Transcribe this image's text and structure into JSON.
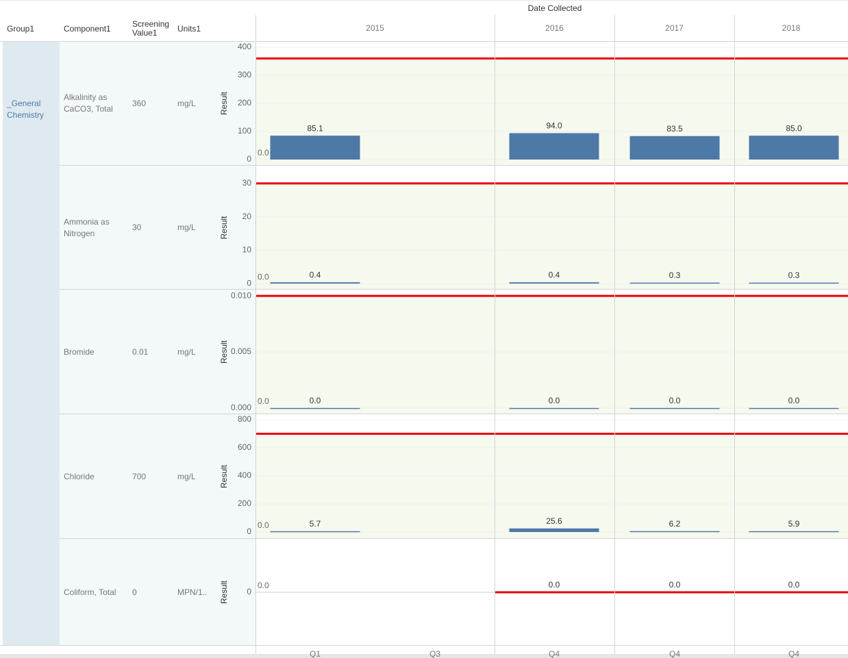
{
  "header": {
    "columns": [
      "Group1",
      "Component1",
      "Screening Value1",
      "Units1"
    ],
    "date_label": "Date Collected",
    "years": [
      "2015",
      "2016",
      "2017",
      "2018"
    ],
    "quarters": [
      "Q1",
      "Q3",
      "Q4",
      "Q4",
      "Q4"
    ]
  },
  "group": "_General Chemistry",
  "chart_data": [
    {
      "type": "bar",
      "component": "Alkalinity as CaCO3, Total",
      "screening_value": 360,
      "units": "mg/L",
      "ylabel": "Result",
      "lead_value": 0,
      "lead_label": "0.0",
      "values": [
        85.1,
        null,
        94.0,
        83.5,
        85.0
      ],
      "value_labels": [
        "85.1",
        null,
        "94.0",
        "83.5",
        "85.0"
      ],
      "reference": [
        360,
        360,
        360,
        360
      ],
      "color": "#4e79a7",
      "reference_color": "#e8050d",
      "ylim": [
        -19.5,
        419.5
      ],
      "yticks": [
        0,
        100,
        200,
        300,
        400
      ]
    },
    {
      "type": "bar",
      "component": "Ammonia as Nitrogen",
      "screening_value": 30,
      "units": "mg/L",
      "ylabel": "Result",
      "lead_value": 0,
      "lead_label": "0.0",
      "values": [
        0.4,
        null,
        0.4,
        0.3,
        0.3
      ],
      "value_labels": [
        "0.4",
        null,
        "0.4",
        "0.3",
        "0.3"
      ],
      "reference": [
        30,
        30,
        30,
        30
      ],
      "color": "#4e79a7",
      "reference_color": "#e8050d",
      "ylim": [
        -1.6,
        35.1
      ],
      "yticks": [
        0,
        10,
        20,
        30
      ]
    },
    {
      "type": "bar",
      "component": "Bromide",
      "screening_value": 0.01,
      "units": "mg/L",
      "ylabel": "Result",
      "lead_value": 0,
      "lead_label": "0.0",
      "values": [
        0,
        null,
        0,
        0,
        0
      ],
      "value_labels": [
        "0.0",
        null,
        "0.0",
        "0.0",
        "0.0"
      ],
      "reference": [
        0.01,
        0.01,
        0.01,
        0.01
      ],
      "color": "#4e79a7",
      "reference_color": "#e8050d",
      "ylim": [
        -0.0005,
        0.0105
      ],
      "yticks": [
        {
          "value": 0,
          "label": "0.000"
        },
        {
          "value": 0.005,
          "label": "0.005"
        },
        {
          "value": 0.01,
          "label": "0.010"
        }
      ]
    },
    {
      "type": "bar",
      "component": "Chloride",
      "screening_value": 700,
      "units": "mg/L",
      "ylabel": "Result",
      "lead_value": 0,
      "lead_label": "0.0",
      "values": [
        5.7,
        null,
        25.6,
        6.2,
        5.9
      ],
      "value_labels": [
        "5.7",
        null,
        "25.6",
        "6.2",
        "5.9"
      ],
      "reference": [
        700,
        700,
        700,
        700
      ],
      "color": "#4e79a7",
      "reference_color": "#e8050d",
      "ylim": [
        -44,
        834
      ],
      "yticks": [
        0,
        200,
        400,
        600,
        800
      ]
    },
    {
      "type": "bar",
      "component": "Coliform, Total",
      "screening_value": 0,
      "units": "MPN/1..",
      "ylabel": "Result",
      "lead_value": 0,
      "lead_label": "0.0",
      "values": [
        null,
        null,
        0,
        0,
        0
      ],
      "value_labels": [
        null,
        null,
        "0.0",
        "0.0",
        "0.0"
      ],
      "reference": [
        null,
        0,
        0,
        0
      ],
      "color": "#4e79a7",
      "reference_color": "#e8050d",
      "ylim": [
        -1,
        1
      ],
      "yticks": [
        0
      ]
    }
  ]
}
